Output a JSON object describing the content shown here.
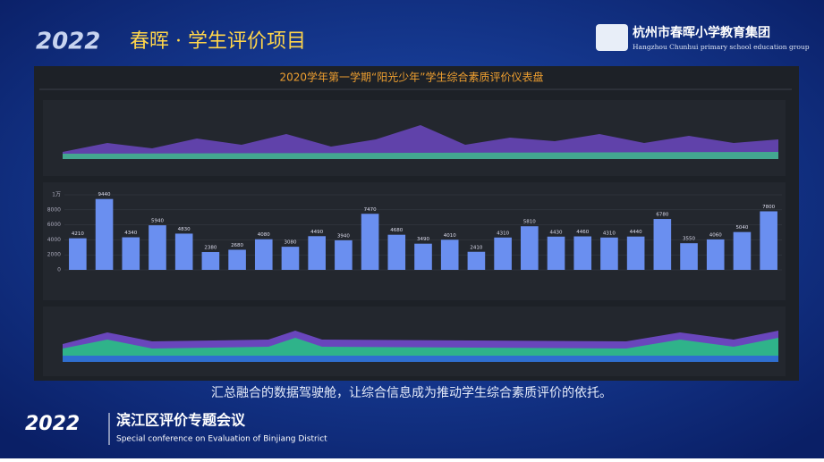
{
  "header": {
    "year": "2022",
    "title": "春晖 · 学生评价项目",
    "org": "杭州市春晖小学教育集团",
    "org_en": "Hangzhou Chunhui primary school education group"
  },
  "dashboard": {
    "title": "2020学年第一学期“阳光少年”学生综合素质评价仪表盘",
    "chart": {
      "type": "bar",
      "color": "#6a8ff0",
      "values": [
        4210,
        9440,
        4340,
        5940,
        4830,
        2380,
        2680,
        4080,
        3080,
        4490,
        3940,
        7470,
        4680,
        3490,
        4010,
        2410,
        4310,
        5810,
        4430,
        4460,
        4310,
        4440,
        6780,
        3550,
        4060,
        5040,
        7800
      ],
      "ylim": [
        0,
        10000
      ],
      "yticks": [
        0,
        2000,
        4000,
        6000,
        8000,
        {
          "value": 10000,
          "label": "1万"
        }
      ]
    }
  },
  "caption": "汇总融合的数据驾驶舱，让综合信息成为推动学生综合素质评价的依托。",
  "footer": {
    "year": "2022",
    "title": "滨江区评价专题会议",
    "subtitle": "Special conference on Evaluation of Binjiang District"
  }
}
